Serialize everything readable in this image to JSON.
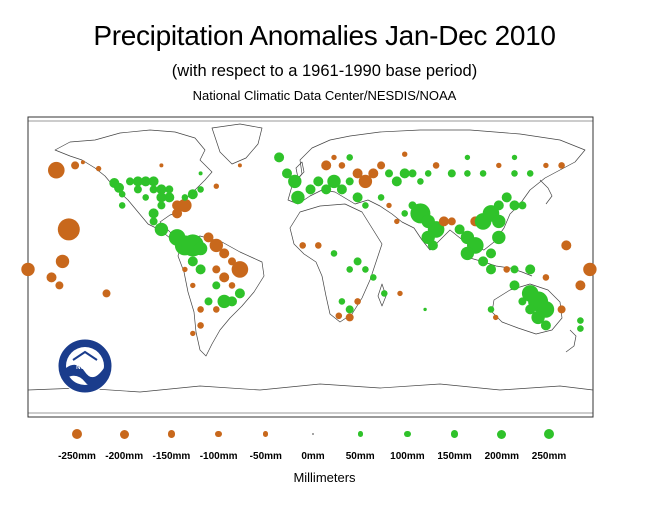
{
  "title": "Precipitation Anomalies Jan-Dec 2010",
  "subtitle": "(with respect to a 1961-1990 base period)",
  "source": "National Climatic Data Center/NESDIS/NOAA",
  "logo_text": "NOAA",
  "units": "Millimeters",
  "colors": {
    "dry": "#c8681c",
    "wet": "#2fc22a",
    "land_outline": "#444444",
    "frame": "#333333"
  },
  "legend": [
    {
      "label": "-250mm",
      "value": -250
    },
    {
      "label": "-200mm",
      "value": -200
    },
    {
      "label": "-150mm",
      "value": -150
    },
    {
      "label": "-100mm",
      "value": -100
    },
    {
      "label": "-50mm",
      "value": -50
    },
    {
      "label": "0mm",
      "value": 0
    },
    {
      "label": "50mm",
      "value": 50
    },
    {
      "label": "100mm",
      "value": 100
    },
    {
      "label": "150mm",
      "value": 150
    },
    {
      "label": "200mm",
      "value": 200
    },
    {
      "label": "250mm",
      "value": 250
    }
  ],
  "anomalies": [
    {
      "lon": -162,
      "lat": 57,
      "mm": -250
    },
    {
      "lon": -154,
      "lat": 20,
      "mm": -350
    },
    {
      "lon": -150,
      "lat": 60,
      "mm": -120
    },
    {
      "lon": -135,
      "lat": 58,
      "mm": -80
    },
    {
      "lon": -125,
      "lat": 49,
      "mm": 150
    },
    {
      "lon": -122,
      "lat": 46,
      "mm": 150
    },
    {
      "lon": -120,
      "lat": 42,
      "mm": 100
    },
    {
      "lon": -120,
      "lat": 35,
      "mm": 100
    },
    {
      "lon": -115,
      "lat": 50,
      "mm": 120
    },
    {
      "lon": -110,
      "lat": 50,
      "mm": 150
    },
    {
      "lon": -110,
      "lat": 45,
      "mm": 120
    },
    {
      "lon": -105,
      "lat": 50,
      "mm": 150
    },
    {
      "lon": -105,
      "lat": 40,
      "mm": 100
    },
    {
      "lon": -100,
      "lat": 50,
      "mm": 150
    },
    {
      "lon": -100,
      "lat": 45,
      "mm": 120
    },
    {
      "lon": -95,
      "lat": 45,
      "mm": 150
    },
    {
      "lon": -95,
      "lat": 40,
      "mm": 150
    },
    {
      "lon": -95,
      "lat": 35,
      "mm": 120
    },
    {
      "lon": -90,
      "lat": 40,
      "mm": 150
    },
    {
      "lon": -90,
      "lat": 45,
      "mm": 120
    },
    {
      "lon": -85,
      "lat": 35,
      "mm": -150
    },
    {
      "lon": -80,
      "lat": 35,
      "mm": -200
    },
    {
      "lon": -80,
      "lat": 40,
      "mm": 100
    },
    {
      "lon": -75,
      "lat": 42,
      "mm": 150
    },
    {
      "lon": -70,
      "lat": 45,
      "mm": 100
    },
    {
      "lon": -85,
      "lat": 30,
      "mm": -150
    },
    {
      "lon": -100,
      "lat": 30,
      "mm": 150
    },
    {
      "lon": -100,
      "lat": 25,
      "mm": 120
    },
    {
      "lon": -95,
      "lat": 20,
      "mm": 200
    },
    {
      "lon": -85,
      "lat": 15,
      "mm": 250
    },
    {
      "lon": -80,
      "lat": 10,
      "mm": 300
    },
    {
      "lon": -75,
      "lat": 10,
      "mm": 350
    },
    {
      "lon": -70,
      "lat": 8,
      "mm": 200
    },
    {
      "lon": -65,
      "lat": 15,
      "mm": -150
    },
    {
      "lon": -60,
      "lat": 10,
      "mm": -200
    },
    {
      "lon": -55,
      "lat": 5,
      "mm": -150
    },
    {
      "lon": -50,
      "lat": 0,
      "mm": -120
    },
    {
      "lon": -45,
      "lat": -5,
      "mm": -250
    },
    {
      "lon": -75,
      "lat": 0,
      "mm": 150
    },
    {
      "lon": -70,
      "lat": -5,
      "mm": 150
    },
    {
      "lon": -60,
      "lat": -5,
      "mm": -120
    },
    {
      "lon": -55,
      "lat": -10,
      "mm": -150
    },
    {
      "lon": -50,
      "lat": -15,
      "mm": -100
    },
    {
      "lon": -45,
      "lat": -20,
      "mm": 150
    },
    {
      "lon": -50,
      "lat": -25,
      "mm": 150
    },
    {
      "lon": -55,
      "lat": -25,
      "mm": 200
    },
    {
      "lon": -60,
      "lat": -30,
      "mm": -100
    },
    {
      "lon": -65,
      "lat": -25,
      "mm": 120
    },
    {
      "lon": -70,
      "lat": -30,
      "mm": -100
    },
    {
      "lon": -70,
      "lat": -40,
      "mm": -100
    },
    {
      "lon": -75,
      "lat": -45,
      "mm": -80
    },
    {
      "lon": -75,
      "lat": -15,
      "mm": -80
    },
    {
      "lon": -80,
      "lat": -5,
      "mm": -80
    },
    {
      "lon": -60,
      "lat": -15,
      "mm": 120
    },
    {
      "lon": -180,
      "lat": -5,
      "mm": -200
    },
    {
      "lon": -158,
      "lat": 0,
      "mm": -200
    },
    {
      "lon": -165,
      "lat": -10,
      "mm": -150
    },
    {
      "lon": -160,
      "lat": -15,
      "mm": -120
    },
    {
      "lon": -130,
      "lat": -20,
      "mm": -120
    },
    {
      "lon": 178,
      "lat": -5,
      "mm": -200
    },
    {
      "lon": 172,
      "lat": -15,
      "mm": -150
    },
    {
      "lon": 163,
      "lat": 10,
      "mm": -150
    },
    {
      "lon": -20,
      "lat": 65,
      "mm": 150
    },
    {
      "lon": -15,
      "lat": 55,
      "mm": 150
    },
    {
      "lon": -10,
      "lat": 50,
      "mm": 200
    },
    {
      "lon": -8,
      "lat": 40,
      "mm": 200
    },
    {
      "lon": 0,
      "lat": 45,
      "mm": 150
    },
    {
      "lon": 5,
      "lat": 50,
      "mm": 150
    },
    {
      "lon": 10,
      "lat": 45,
      "mm": 150
    },
    {
      "lon": 15,
      "lat": 50,
      "mm": 200
    },
    {
      "lon": 20,
      "lat": 45,
      "mm": 150
    },
    {
      "lon": 25,
      "lat": 50,
      "mm": 120
    },
    {
      "lon": 10,
      "lat": 60,
      "mm": -150
    },
    {
      "lon": 20,
      "lat": 60,
      "mm": -100
    },
    {
      "lon": 30,
      "lat": 55,
      "mm": -150
    },
    {
      "lon": 35,
      "lat": 50,
      "mm": -200
    },
    {
      "lon": 40,
      "lat": 55,
      "mm": -150
    },
    {
      "lon": 45,
      "lat": 60,
      "mm": -120
    },
    {
      "lon": 50,
      "lat": 55,
      "mm": 120
    },
    {
      "lon": 55,
      "lat": 50,
      "mm": 150
    },
    {
      "lon": 60,
      "lat": 55,
      "mm": 150
    },
    {
      "lon": 65,
      "lat": 55,
      "mm": 120
    },
    {
      "lon": 70,
      "lat": 50,
      "mm": 100
    },
    {
      "lon": 75,
      "lat": 55,
      "mm": 100
    },
    {
      "lon": 80,
      "lat": 60,
      "mm": -100
    },
    {
      "lon": 90,
      "lat": 55,
      "mm": 120
    },
    {
      "lon": 100,
      "lat": 55,
      "mm": 100
    },
    {
      "lon": 110,
      "lat": 55,
      "mm": 100
    },
    {
      "lon": 120,
      "lat": 60,
      "mm": -80
    },
    {
      "lon": 130,
      "lat": 55,
      "mm": 100
    },
    {
      "lon": 140,
      "lat": 55,
      "mm": 100
    },
    {
      "lon": 150,
      "lat": 60,
      "mm": -80
    },
    {
      "lon": 160,
      "lat": 60,
      "mm": -100
    },
    {
      "lon": 30,
      "lat": 40,
      "mm": 150
    },
    {
      "lon": 35,
      "lat": 35,
      "mm": 100
    },
    {
      "lon": 45,
      "lat": 40,
      "mm": 100
    },
    {
      "lon": 50,
      "lat": 35,
      "mm": -80
    },
    {
      "lon": 55,
      "lat": 25,
      "mm": -80
    },
    {
      "lon": 60,
      "lat": 30,
      "mm": 100
    },
    {
      "lon": 65,
      "lat": 35,
      "mm": 120
    },
    {
      "lon": 70,
      "lat": 30,
      "mm": 300
    },
    {
      "lon": 75,
      "lat": 25,
      "mm": 200
    },
    {
      "lon": 80,
      "lat": 20,
      "mm": 250
    },
    {
      "lon": 75,
      "lat": 15,
      "mm": 200
    },
    {
      "lon": 78,
      "lat": 10,
      "mm": 150
    },
    {
      "lon": 85,
      "lat": 25,
      "mm": -150
    },
    {
      "lon": 90,
      "lat": 25,
      "mm": -120
    },
    {
      "lon": 95,
      "lat": 20,
      "mm": 150
    },
    {
      "lon": 100,
      "lat": 15,
      "mm": 200
    },
    {
      "lon": 105,
      "lat": 10,
      "mm": 250
    },
    {
      "lon": 100,
      "lat": 5,
      "mm": 200
    },
    {
      "lon": 105,
      "lat": 25,
      "mm": -150
    },
    {
      "lon": 110,
      "lat": 25,
      "mm": 250
    },
    {
      "lon": 115,
      "lat": 30,
      "mm": 250
    },
    {
      "lon": 120,
      "lat": 35,
      "mm": 150
    },
    {
      "lon": 120,
      "lat": 25,
      "mm": 200
    },
    {
      "lon": 125,
      "lat": 40,
      "mm": 150
    },
    {
      "lon": 130,
      "lat": 35,
      "mm": 150
    },
    {
      "lon": 135,
      "lat": 35,
      "mm": 120
    },
    {
      "lon": 120,
      "lat": 15,
      "mm": 200
    },
    {
      "lon": 115,
      "lat": 5,
      "mm": 150
    },
    {
      "lon": 110,
      "lat": 0,
      "mm": 150
    },
    {
      "lon": 115,
      "lat": -5,
      "mm": 150
    },
    {
      "lon": 125,
      "lat": -5,
      "mm": -100
    },
    {
      "lon": 130,
      "lat": -5,
      "mm": 120
    },
    {
      "lon": 140,
      "lat": -5,
      "mm": 150
    },
    {
      "lon": 150,
      "lat": -10,
      "mm": -100
    },
    {
      "lon": 115,
      "lat": -30,
      "mm": 100
    },
    {
      "lon": 118,
      "lat": -35,
      "mm": -80
    },
    {
      "lon": 130,
      "lat": -15,
      "mm": 150
    },
    {
      "lon": 140,
      "lat": -20,
      "mm": 250
    },
    {
      "lon": 145,
      "lat": -25,
      "mm": 300
    },
    {
      "lon": 150,
      "lat": -30,
      "mm": 250
    },
    {
      "lon": 145,
      "lat": -35,
      "mm": 200
    },
    {
      "lon": 140,
      "lat": -30,
      "mm": 150
    },
    {
      "lon": 135,
      "lat": -25,
      "mm": 120
    },
    {
      "lon": 150,
      "lat": -40,
      "mm": 150
    },
    {
      "lon": 160,
      "lat": -30,
      "mm": -120
    },
    {
      "lon": 172,
      "lat": -42,
      "mm": 100
    },
    {
      "lon": 172,
      "lat": -37,
      "mm": 100
    },
    {
      "lon": -5,
      "lat": 10,
      "mm": -100
    },
    {
      "lon": 5,
      "lat": 10,
      "mm": -100
    },
    {
      "lon": 15,
      "lat": 5,
      "mm": 100
    },
    {
      "lon": 25,
      "lat": -5,
      "mm": 100
    },
    {
      "lon": 30,
      "lat": 0,
      "mm": 120
    },
    {
      "lon": 35,
      "lat": -5,
      "mm": 100
    },
    {
      "lon": 40,
      "lat": -10,
      "mm": 100
    },
    {
      "lon": 20,
      "lat": -25,
      "mm": 100
    },
    {
      "lon": 25,
      "lat": -30,
      "mm": 120
    },
    {
      "lon": 30,
      "lat": -25,
      "mm": -100
    },
    {
      "lon": 25,
      "lat": -35,
      "mm": -120
    },
    {
      "lon": 18,
      "lat": -34,
      "mm": -100
    },
    {
      "lon": 47,
      "lat": -20,
      "mm": 100
    },
    {
      "lon": 57,
      "lat": -20,
      "mm": -80
    },
    {
      "lon": 73,
      "lat": -30,
      "mm": 50
    },
    {
      "lon": 15,
      "lat": 65,
      "mm": -80
    },
    {
      "lon": 25,
      "lat": 65,
      "mm": 100
    },
    {
      "lon": 60,
      "lat": 67,
      "mm": -80
    },
    {
      "lon": 100,
      "lat": 65,
      "mm": 80
    },
    {
      "lon": 130,
      "lat": 65,
      "mm": 80
    },
    {
      "lon": -145,
      "lat": 62,
      "mm": -60
    },
    {
      "lon": -95,
      "lat": 60,
      "mm": -60
    },
    {
      "lon": -70,
      "lat": 55,
      "mm": 60
    },
    {
      "lon": -60,
      "lat": 47,
      "mm": -80
    },
    {
      "lon": -45,
      "lat": 60,
      "mm": -60
    }
  ]
}
